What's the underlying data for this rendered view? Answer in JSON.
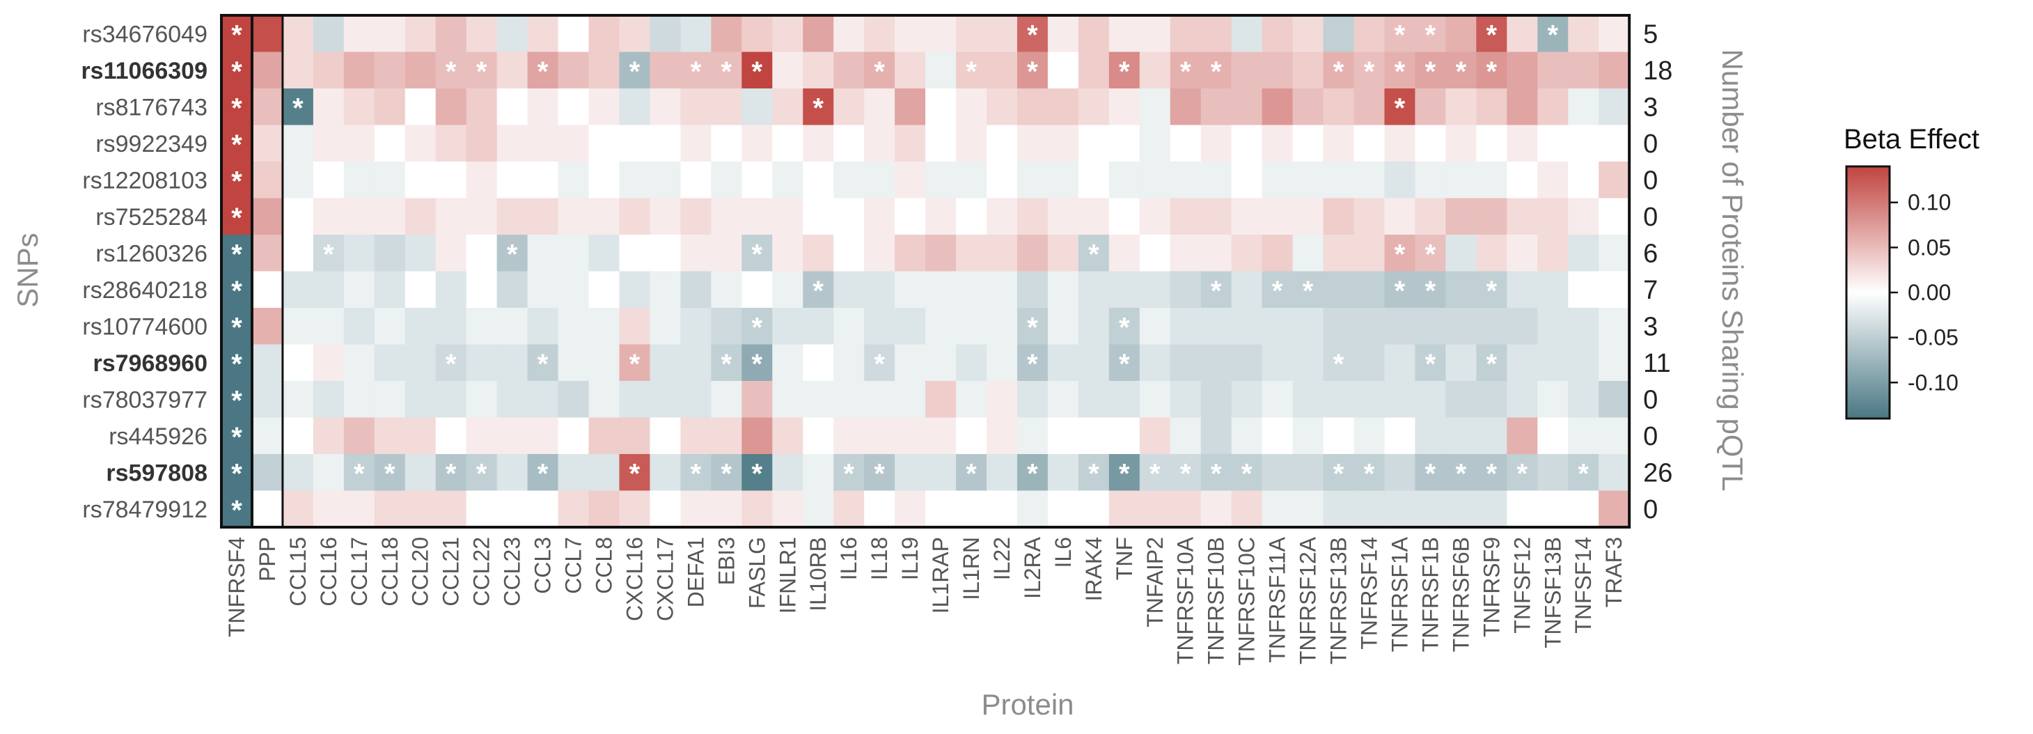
{
  "chart_data": {
    "type": "heatmap",
    "xlabel": "Protein",
    "ylabel": "SNPs",
    "y2label": "Number of Proteins Sharing pQTL",
    "legend": {
      "title": "Beta Effect",
      "placement": "right",
      "ticks": [
        0.1,
        0.05,
        0.0,
        -0.05,
        -0.1
      ],
      "tick_labels": [
        "0.10",
        "0.05",
        "0.00",
        "-0.05",
        "-0.10"
      ],
      "range": [
        -0.14,
        0.14
      ]
    },
    "colors": {
      "positive": "#c0443f",
      "zero": "#ffffff",
      "negative": "#4a7783"
    },
    "columns": [
      "TNFRSF4",
      "PPP",
      "CCL15",
      "CCL16",
      "CCL17",
      "CCL18",
      "CCL20",
      "CCL21",
      "CCL22",
      "CCL23",
      "CCL3",
      "CCL7",
      "CCL8",
      "CXCL16",
      "CXCL17",
      "DEFA1",
      "EBI3",
      "FASLG",
      "IFNLR1",
      "IL10RB",
      "IL16",
      "IL18",
      "IL19",
      "IL1RAP",
      "IL1RN",
      "IL22",
      "IL2RA",
      "IL6",
      "IRAK4",
      "TNF",
      "TNFAIP2",
      "TNFRSF10A",
      "TNFRSF10B",
      "TNFRSF10C",
      "TNFRSF11A",
      "TNFRSF12A",
      "TNFRSF13B",
      "TNFRSF14",
      "TNFRSF1A",
      "TNFRSF1B",
      "TNFRSF6B",
      "TNFRSF9",
      "TNFSF12",
      "TNFSF13B",
      "TNFSF14",
      "TRAF3"
    ],
    "rows": [
      {
        "snp": "rs34676049",
        "bold": false,
        "count": "5",
        "values": [
          0.14,
          0.13,
          0.02,
          -0.03,
          0.01,
          0.01,
          0.02,
          0.04,
          0.02,
          -0.02,
          0.02,
          0.0,
          0.03,
          0.02,
          -0.03,
          -0.02,
          0.05,
          0.03,
          0.02,
          0.06,
          0.01,
          0.02,
          0.01,
          0.01,
          0.02,
          0.02,
          0.11,
          0.01,
          0.03,
          0.01,
          0.01,
          0.03,
          0.03,
          -0.02,
          0.03,
          0.02,
          -0.04,
          0.03,
          0.04,
          0.04,
          0.05,
          0.12,
          0.02,
          -0.07,
          0.02,
          0.01
        ],
        "stars": [
          0,
          26,
          38,
          39,
          41,
          43
        ]
      },
      {
        "snp": "rs11066309",
        "bold": true,
        "count": "18",
        "values": [
          0.14,
          0.06,
          0.02,
          0.03,
          0.05,
          0.04,
          0.05,
          0.04,
          0.04,
          0.02,
          0.06,
          0.04,
          0.03,
          -0.06,
          0.04,
          0.04,
          0.04,
          0.15,
          0.01,
          0.02,
          0.04,
          0.05,
          0.02,
          -0.01,
          0.03,
          0.03,
          0.07,
          0.0,
          0.03,
          0.08,
          0.02,
          0.05,
          0.05,
          0.04,
          0.04,
          0.03,
          0.05,
          0.04,
          0.05,
          0.06,
          0.06,
          0.07,
          0.06,
          0.04,
          0.04,
          0.05
        ],
        "stars": [
          0,
          7,
          8,
          10,
          13,
          15,
          16,
          17,
          21,
          24,
          26,
          29,
          31,
          32,
          36,
          37,
          38,
          39,
          40,
          41
        ]
      },
      {
        "snp": "rs8176743",
        "bold": false,
        "count": "3",
        "values": [
          0.14,
          0.04,
          -0.13,
          0.01,
          0.02,
          0.03,
          0.0,
          0.05,
          0.03,
          0.0,
          0.01,
          0.0,
          0.01,
          -0.02,
          0.01,
          0.02,
          0.02,
          -0.02,
          0.02,
          0.13,
          0.02,
          0.01,
          0.06,
          0.0,
          0.01,
          0.02,
          0.03,
          0.03,
          0.02,
          0.01,
          -0.01,
          0.06,
          0.04,
          0.04,
          0.07,
          0.04,
          0.03,
          0.04,
          0.13,
          0.04,
          0.02,
          0.03,
          0.06,
          0.03,
          -0.01,
          -0.02
        ],
        "stars": [
          0,
          2,
          19,
          38
        ]
      },
      {
        "snp": "rs9922349",
        "bold": false,
        "count": "0",
        "values": [
          0.14,
          0.02,
          -0.01,
          0.01,
          0.01,
          0.0,
          0.01,
          0.02,
          0.03,
          0.01,
          0.01,
          0.01,
          0.0,
          0.0,
          0.0,
          0.01,
          0.0,
          0.01,
          0.0,
          0.01,
          0.0,
          0.01,
          0.02,
          0.0,
          0.01,
          0.0,
          0.01,
          0.01,
          0.0,
          0.0,
          -0.01,
          0.0,
          0.01,
          0.0,
          0.01,
          0.0,
          0.01,
          0.0,
          0.01,
          0.0,
          0.01,
          0.0,
          0.01,
          0.0,
          0.0,
          0.0
        ],
        "stars": [
          0
        ]
      },
      {
        "snp": "rs12208103",
        "bold": false,
        "count": "0",
        "values": [
          0.14,
          0.03,
          -0.01,
          0.0,
          -0.01,
          -0.01,
          0.0,
          0.0,
          0.01,
          0.0,
          0.0,
          -0.01,
          0.0,
          -0.01,
          -0.01,
          0.0,
          -0.01,
          0.0,
          -0.01,
          0.0,
          -0.01,
          -0.01,
          0.01,
          -0.01,
          -0.01,
          0.0,
          -0.01,
          -0.01,
          0.0,
          -0.01,
          -0.01,
          -0.01,
          -0.01,
          0.0,
          -0.01,
          -0.01,
          -0.01,
          -0.01,
          -0.02,
          -0.01,
          -0.01,
          -0.01,
          0.0,
          0.01,
          0.0,
          0.03
        ],
        "stars": [
          0
        ]
      },
      {
        "snp": "rs7525284",
        "bold": false,
        "count": "0",
        "values": [
          0.14,
          0.06,
          0.0,
          0.01,
          0.01,
          0.01,
          0.02,
          0.01,
          0.01,
          0.02,
          0.02,
          0.01,
          0.01,
          0.02,
          0.01,
          0.02,
          0.01,
          0.01,
          0.01,
          0.0,
          0.0,
          0.01,
          0.0,
          0.01,
          0.0,
          0.01,
          0.02,
          0.01,
          0.01,
          0.0,
          0.01,
          0.02,
          0.02,
          0.01,
          0.01,
          0.01,
          0.03,
          0.02,
          0.01,
          0.02,
          0.04,
          0.04,
          0.02,
          0.02,
          0.01,
          0.0
        ],
        "stars": [
          0
        ]
      },
      {
        "snp": "rs1260326",
        "bold": false,
        "count": "6",
        "values": [
          -0.14,
          0.04,
          0.0,
          -0.03,
          -0.02,
          -0.03,
          -0.02,
          0.01,
          0.0,
          -0.05,
          -0.01,
          -0.01,
          -0.02,
          0.0,
          0.0,
          0.01,
          0.01,
          -0.04,
          0.01,
          0.02,
          0.0,
          0.01,
          0.03,
          0.04,
          0.02,
          0.02,
          0.04,
          0.02,
          -0.04,
          0.01,
          0.0,
          0.01,
          0.01,
          0.02,
          0.03,
          -0.01,
          0.02,
          0.02,
          0.05,
          0.04,
          -0.02,
          0.02,
          0.01,
          0.02,
          -0.02,
          -0.01
        ],
        "stars": [
          0,
          3,
          9,
          17,
          28,
          38,
          39
        ]
      },
      {
        "snp": "rs28640218",
        "bold": false,
        "count": "7",
        "values": [
          -0.14,
          0.0,
          -0.02,
          -0.02,
          -0.01,
          -0.02,
          0.0,
          -0.02,
          0.0,
          -0.03,
          -0.01,
          -0.01,
          0.0,
          -0.02,
          -0.01,
          -0.03,
          -0.01,
          0.0,
          -0.01,
          -0.05,
          -0.02,
          -0.02,
          -0.01,
          -0.01,
          -0.01,
          -0.01,
          -0.03,
          -0.01,
          -0.02,
          -0.02,
          -0.02,
          -0.03,
          -0.04,
          -0.02,
          -0.04,
          -0.04,
          -0.04,
          -0.04,
          -0.05,
          -0.05,
          -0.04,
          -0.04,
          -0.02,
          -0.02,
          0.0,
          0.0
        ],
        "stars": [
          0,
          19,
          32,
          34,
          35,
          38,
          39,
          41
        ]
      },
      {
        "snp": "rs10774600",
        "bold": false,
        "count": "3",
        "values": [
          -0.14,
          0.05,
          -0.01,
          -0.01,
          -0.02,
          -0.01,
          -0.02,
          -0.02,
          -0.01,
          -0.01,
          -0.02,
          -0.01,
          -0.01,
          0.02,
          -0.01,
          -0.02,
          -0.03,
          -0.04,
          -0.02,
          -0.02,
          -0.01,
          -0.02,
          -0.02,
          -0.01,
          -0.01,
          -0.01,
          -0.04,
          -0.01,
          -0.02,
          -0.04,
          -0.01,
          -0.02,
          -0.02,
          -0.02,
          -0.02,
          -0.02,
          -0.03,
          -0.03,
          -0.03,
          -0.03,
          -0.03,
          -0.03,
          -0.03,
          -0.02,
          -0.02,
          -0.01
        ],
        "stars": [
          0,
          17,
          26,
          29
        ]
      },
      {
        "snp": "rs7968960",
        "bold": true,
        "count": "11",
        "values": [
          -0.14,
          -0.02,
          0.0,
          0.01,
          -0.01,
          -0.02,
          -0.02,
          -0.03,
          -0.02,
          -0.02,
          -0.04,
          -0.01,
          -0.01,
          0.05,
          -0.02,
          -0.02,
          -0.04,
          -0.08,
          -0.01,
          0.0,
          -0.01,
          -0.03,
          -0.01,
          -0.01,
          -0.02,
          -0.01,
          -0.05,
          -0.02,
          -0.02,
          -0.05,
          -0.02,
          -0.03,
          -0.03,
          -0.03,
          -0.02,
          -0.02,
          -0.03,
          -0.03,
          -0.02,
          -0.04,
          -0.02,
          -0.04,
          -0.02,
          -0.02,
          -0.02,
          -0.01
        ],
        "stars": [
          0,
          7,
          10,
          13,
          16,
          17,
          21,
          26,
          29,
          36,
          39,
          41
        ]
      },
      {
        "snp": "rs78037977",
        "bold": false,
        "count": "0",
        "values": [
          -0.14,
          -0.02,
          -0.01,
          -0.02,
          -0.01,
          -0.01,
          -0.02,
          -0.02,
          -0.01,
          -0.02,
          -0.02,
          -0.03,
          -0.01,
          -0.02,
          -0.02,
          -0.02,
          -0.01,
          0.04,
          -0.01,
          -0.01,
          -0.01,
          -0.01,
          -0.01,
          0.03,
          -0.01,
          0.01,
          -0.02,
          -0.01,
          -0.02,
          -0.02,
          -0.01,
          -0.02,
          -0.03,
          -0.02,
          -0.01,
          -0.02,
          -0.02,
          -0.02,
          -0.02,
          -0.02,
          -0.03,
          -0.03,
          -0.02,
          -0.01,
          -0.02,
          -0.04
        ],
        "stars": [
          0
        ]
      },
      {
        "snp": "rs445926",
        "bold": false,
        "count": "0",
        "values": [
          -0.14,
          -0.01,
          0.0,
          0.02,
          0.04,
          0.02,
          0.02,
          0.0,
          0.01,
          0.01,
          0.01,
          0.0,
          0.03,
          0.03,
          0.0,
          0.02,
          0.02,
          0.07,
          0.02,
          0.0,
          0.01,
          0.01,
          0.01,
          0.01,
          0.0,
          0.01,
          -0.01,
          0.0,
          0.0,
          0.0,
          0.02,
          -0.01,
          -0.03,
          -0.01,
          0.0,
          -0.01,
          0.0,
          -0.01,
          0.0,
          -0.02,
          -0.02,
          -0.02,
          0.05,
          0.0,
          -0.01,
          -0.01
        ],
        "stars": [
          0
        ]
      },
      {
        "snp": "rs597808",
        "bold": true,
        "count": "26",
        "values": [
          -0.14,
          -0.04,
          -0.02,
          -0.01,
          -0.04,
          -0.05,
          -0.02,
          -0.05,
          -0.04,
          -0.02,
          -0.06,
          -0.02,
          -0.02,
          0.12,
          -0.02,
          -0.04,
          -0.05,
          -0.13,
          -0.02,
          -0.01,
          -0.04,
          -0.05,
          -0.02,
          -0.02,
          -0.05,
          -0.02,
          -0.07,
          -0.02,
          -0.04,
          -0.1,
          -0.03,
          -0.03,
          -0.04,
          -0.04,
          -0.03,
          -0.03,
          -0.04,
          -0.04,
          -0.03,
          -0.05,
          -0.05,
          -0.05,
          -0.04,
          -0.03,
          -0.04,
          -0.02
        ],
        "stars": [
          0,
          4,
          5,
          7,
          8,
          10,
          13,
          15,
          16,
          17,
          20,
          21,
          24,
          26,
          28,
          29,
          30,
          31,
          32,
          33,
          36,
          37,
          39,
          40,
          41,
          42,
          44
        ]
      },
      {
        "snp": "rs78479912",
        "bold": false,
        "count": "0",
        "values": [
          -0.14,
          0.0,
          0.02,
          0.01,
          0.01,
          0.02,
          0.02,
          0.02,
          0.0,
          0.0,
          0.0,
          0.02,
          0.03,
          0.02,
          0.0,
          0.01,
          0.01,
          0.02,
          0.01,
          -0.01,
          0.02,
          0.0,
          0.01,
          0.0,
          0.0,
          0.0,
          -0.01,
          0.0,
          0.0,
          0.02,
          0.02,
          0.02,
          0.01,
          0.02,
          -0.01,
          -0.01,
          -0.02,
          -0.02,
          -0.02,
          -0.02,
          -0.02,
          -0.02,
          0.0,
          0.0,
          0.0,
          0.05
        ],
        "stars": [
          0
        ]
      }
    ]
  }
}
